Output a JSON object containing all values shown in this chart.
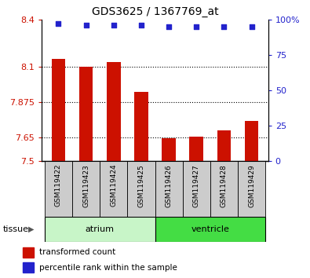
{
  "title": "GDS3625 / 1367769_at",
  "samples": [
    "GSM119422",
    "GSM119423",
    "GSM119424",
    "GSM119425",
    "GSM119426",
    "GSM119427",
    "GSM119428",
    "GSM119429"
  ],
  "bar_values": [
    8.15,
    8.1,
    8.13,
    7.94,
    7.645,
    7.655,
    7.695,
    7.755
  ],
  "dot_values": [
    97,
    96,
    96,
    96,
    95,
    95,
    95,
    95
  ],
  "ylim_left": [
    7.5,
    8.4
  ],
  "ylim_right": [
    0,
    100
  ],
  "yticks_left": [
    7.5,
    7.65,
    7.875,
    8.1,
    8.4
  ],
  "yticks_right": [
    0,
    25,
    50,
    75,
    100
  ],
  "ytick_labels_left": [
    "7.5",
    "7.65",
    "7.875",
    "8.1",
    "8.4"
  ],
  "ytick_labels_right": [
    "0",
    "25",
    "50",
    "75",
    "100%"
  ],
  "bar_color": "#cc1100",
  "dot_color": "#2222cc",
  "bar_width": 0.5,
  "group_info": [
    {
      "start": 0,
      "end": 3,
      "label": "atrium",
      "color": "#c8f5c8"
    },
    {
      "start": 4,
      "end": 7,
      "label": "ventricle",
      "color": "#44dd44"
    }
  ],
  "tissue_label": "tissue",
  "legend_bar_label": "transformed count",
  "legend_dot_label": "percentile rank within the sample",
  "tick_box_color": "#cccccc"
}
